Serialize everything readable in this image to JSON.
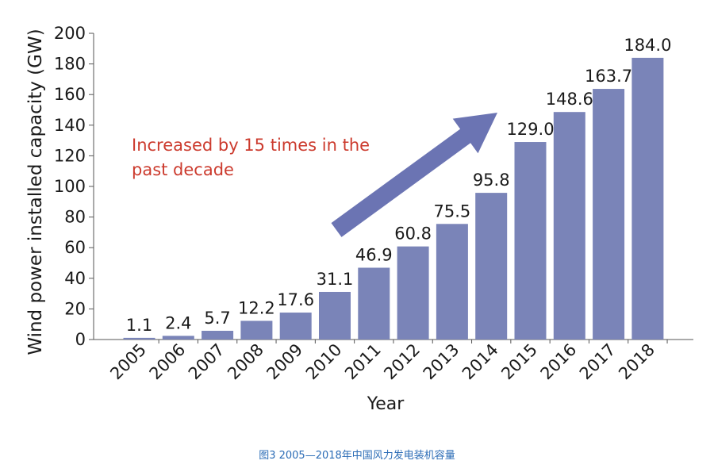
{
  "caption": "图3  2005—2018年中国风力发电装机容量",
  "chart_data": {
    "type": "bar",
    "categories": [
      "2005",
      "2006",
      "2007",
      "2008",
      "2009",
      "2010",
      "2011",
      "2012",
      "2013",
      "2014",
      "2015",
      "2016",
      "2017",
      "2018"
    ],
    "values": [
      1.1,
      2.4,
      5.7,
      12.2,
      17.6,
      31.1,
      46.9,
      60.8,
      75.5,
      95.8,
      129.0,
      148.6,
      163.7,
      184.0
    ],
    "value_labels": [
      "1.1",
      "2.4",
      "5.7",
      "12.2",
      "17.6",
      "31.1",
      "46.9",
      "60.8",
      "75.5",
      "95.8",
      "129.0",
      "148.6",
      "163.7",
      "184.0"
    ],
    "xlabel": "Year",
    "ylabel": "Wind power installed capacity (GW)",
    "ylim": [
      0,
      200
    ],
    "yticks": [
      0,
      20,
      40,
      60,
      80,
      100,
      120,
      140,
      160,
      180,
      200
    ],
    "grid": false,
    "bar_color": "#7a84b8",
    "annotation": {
      "lines": [
        "Increased by 15 times in the",
        "past decade"
      ],
      "color": "#cc3b2e",
      "arrow_color": "#6b74b3"
    }
  }
}
